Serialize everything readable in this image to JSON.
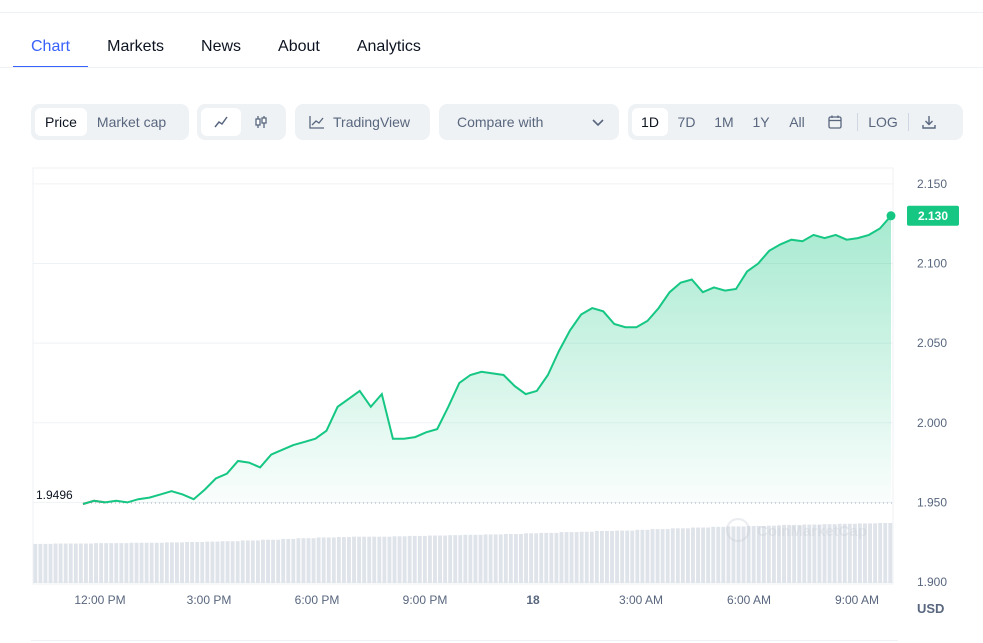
{
  "tabs": [
    "Chart",
    "Markets",
    "News",
    "About",
    "Analytics"
  ],
  "toolbar": {
    "metric": [
      "Price",
      "Market cap"
    ],
    "chart_style_icons": [
      "line-chart-icon",
      "candlestick-icon"
    ],
    "tradingview": "TradingView",
    "compare": "Compare with",
    "ranges": [
      "1D",
      "7D",
      "1M",
      "1Y",
      "All"
    ],
    "log": "LOG"
  },
  "colors": {
    "accent": "#3861fb",
    "up": "#16c784",
    "down": "#ea3943"
  },
  "watermark": "CoinMarketCap",
  "currency": "USD",
  "chart_data": {
    "type": "area",
    "xlabel": "",
    "ylabel": "",
    "ylim": [
      1.9,
      2.16
    ],
    "y_ticks": [
      "2.150",
      "2.100",
      "2.050",
      "2.000",
      "1.950",
      "1.900"
    ],
    "x_ticks": [
      "12:00 PM",
      "3:00 PM",
      "6:00 PM",
      "9:00 PM",
      "18",
      "3:00 AM",
      "6:00 AM",
      "9:00 AM"
    ],
    "open_price": "1.9496",
    "last_price": "2.130",
    "grid": true,
    "series": [
      {
        "values": [
          1.949,
          1.951,
          1.95,
          1.951,
          1.95,
          1.952,
          1.953,
          1.955,
          1.957,
          1.955,
          1.952,
          1.958,
          1.965,
          1.968,
          1.976,
          1.975,
          1.972,
          1.98,
          1.983,
          1.986,
          1.988,
          1.99,
          1.995,
          2.01,
          2.015,
          2.02,
          2.01,
          2.018,
          1.99,
          1.99,
          1.991,
          1.994,
          1.996,
          2.01,
          2.025,
          2.03,
          2.032,
          2.031,
          2.03,
          2.023,
          2.018,
          2.02,
          2.03,
          2.045,
          2.058,
          2.068,
          2.072,
          2.07,
          2.062,
          2.06,
          2.06,
          2.064,
          2.072,
          2.082,
          2.088,
          2.09,
          2.082,
          2.085,
          2.083,
          2.084,
          2.095,
          2.1,
          2.108,
          2.112,
          2.115,
          2.114,
          2.118,
          2.116,
          2.118,
          2.115,
          2.116,
          2.118,
          2.122,
          2.13
        ]
      }
    ],
    "volume": [
      0.45,
      0.46,
      0.46,
      0.47,
      0.47,
      0.48,
      0.48,
      0.49,
      0.5,
      0.51,
      0.52,
      0.54,
      0.56,
      0.58,
      0.6,
      0.62,
      0.63,
      0.64,
      0.64,
      0.65,
      0.66,
      0.67,
      0.68,
      0.69,
      0.7,
      0.71,
      0.73,
      0.74,
      0.76,
      0.77,
      0.79,
      0.8,
      0.82,
      0.84,
      0.86,
      0.88,
      0.9,
      0.91,
      0.92,
      0.93,
      0.95,
      0.96,
      0.97,
      0.98,
      0.99,
      1.0
    ]
  }
}
